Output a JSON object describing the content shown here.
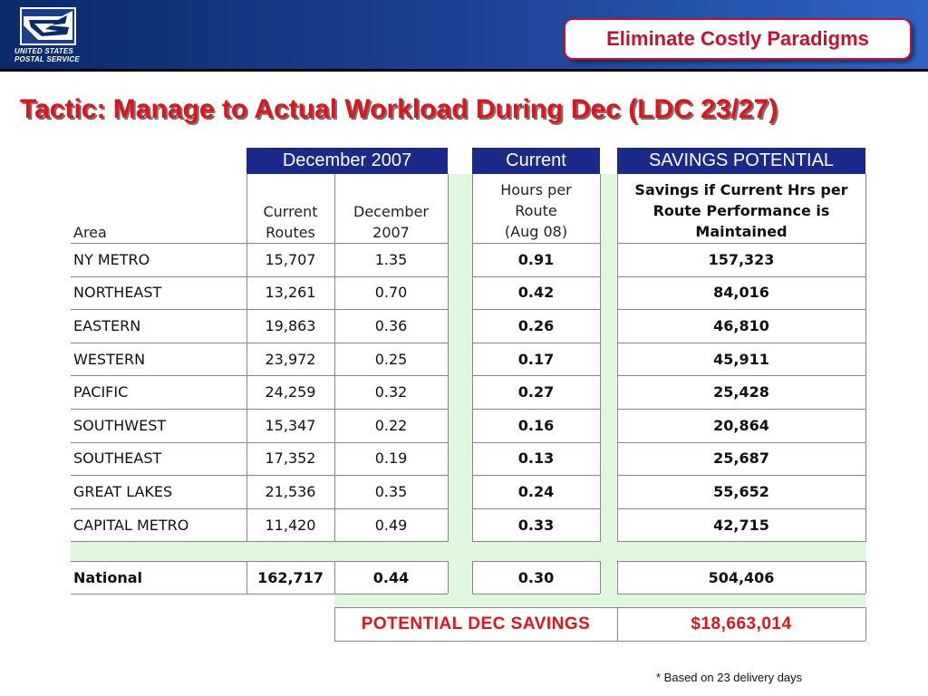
{
  "logo": {
    "line1": "UNITED STATES",
    "line2": "POSTAL SERVICE",
    "name": "eagle-logo-icon"
  },
  "badge": "Eliminate Costly Paradigms",
  "title": "Tactic: Manage to Actual Workload During Dec (LDC 23/27)",
  "table": {
    "group_headers": {
      "december": "December 2007",
      "current": "Current",
      "savings": "SAVINGS POTENTIAL"
    },
    "col_headers": {
      "area": "Area",
      "routes_1": "Current",
      "routes_2": "Routes",
      "dec_1": "December",
      "dec_2": "2007",
      "hours_1": "Hours per",
      "hours_2": "Route",
      "hours_3": "(Aug 08)",
      "savings_1": "Savings if Current Hrs per",
      "savings_2": "Route Performance is",
      "savings_3": "Maintained"
    },
    "rows": [
      {
        "area": "NY METRO",
        "routes": "15,707",
        "dec": "1.35",
        "current": "0.91",
        "savings": "157,323"
      },
      {
        "area": "NORTHEAST",
        "routes": "13,261",
        "dec": "0.70",
        "current": "0.42",
        "savings": "84,016"
      },
      {
        "area": "EASTERN",
        "routes": "19,863",
        "dec": "0.36",
        "current": "0.26",
        "savings": "46,810"
      },
      {
        "area": "WESTERN",
        "routes": "23,972",
        "dec": "0.25",
        "current": "0.17",
        "savings": "45,911"
      },
      {
        "area": "PACIFIC",
        "routes": "24,259",
        "dec": "0.32",
        "current": "0.27",
        "savings": "25,428"
      },
      {
        "area": "SOUTHWEST",
        "routes": "15,347",
        "dec": "0.22",
        "current": "0.16",
        "savings": "20,864"
      },
      {
        "area": "SOUTHEAST",
        "routes": "17,352",
        "dec": "0.19",
        "current": "0.13",
        "savings": "25,687"
      },
      {
        "area": "GREAT LAKES",
        "routes": "21,536",
        "dec": "0.35",
        "current": "0.24",
        "savings": "55,652"
      },
      {
        "area": "CAPITAL METRO",
        "routes": "11,420",
        "dec": "0.49",
        "current": "0.33",
        "savings": "42,715"
      }
    ],
    "national": {
      "area": "National",
      "routes": "162,717",
      "dec": "0.44",
      "current": "0.30",
      "savings": "504,406"
    },
    "potential": {
      "label": "POTENTIAL DEC SAVINGS",
      "value": "$18,663,014"
    }
  },
  "footnote": "* Based on 23 delivery days",
  "colors": {
    "navy": "#1a2a8a",
    "green": "#dff7dd",
    "red": "#e0151b",
    "header": "#1a3f8f"
  }
}
